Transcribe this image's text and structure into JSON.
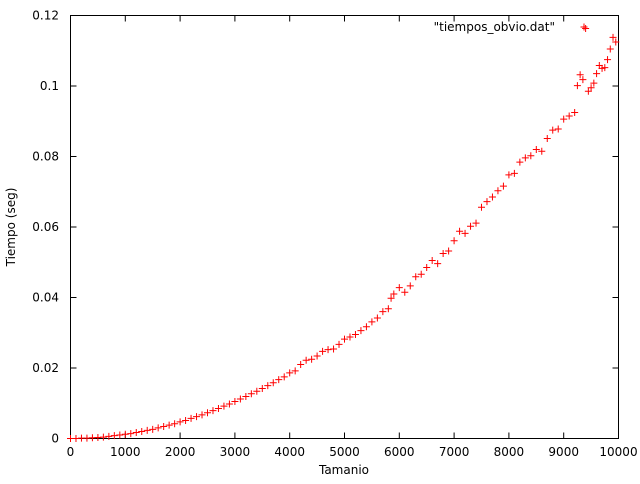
{
  "chart_data": {
    "type": "scatter",
    "title": "",
    "xlabel": "Tamanio",
    "ylabel": "Tiempo (seg)",
    "xlim": [
      0,
      10000
    ],
    "ylim": [
      0,
      0.12
    ],
    "x_ticks": [
      0,
      1000,
      2000,
      3000,
      4000,
      5000,
      6000,
      7000,
      8000,
      9000,
      10000
    ],
    "y_ticks": [
      0,
      0.02,
      0.04,
      0.06,
      0.08,
      0.1,
      0.12
    ],
    "x_tick_labels": [
      "0",
      "1000",
      "2000",
      "3000",
      "4000",
      "5000",
      "6000",
      "7000",
      "8000",
      "9000",
      "10000"
    ],
    "y_tick_labels": [
      "0",
      "0.02",
      "0.04",
      "0.06",
      "0.08",
      "0.1",
      "0.12"
    ],
    "grid": false,
    "legend_position": "top-right",
    "marker": "plus",
    "series": [
      {
        "name": "\"tiempos_obvio.dat\"",
        "color": "#ff0000",
        "points": [
          [
            0,
            0.0
          ],
          [
            100,
            0.0
          ],
          [
            200,
            0.0001
          ],
          [
            300,
            0.0001
          ],
          [
            400,
            0.0002
          ],
          [
            500,
            0.0003
          ],
          [
            600,
            0.0004
          ],
          [
            700,
            0.0006
          ],
          [
            800,
            0.0008
          ],
          [
            900,
            0.001
          ],
          [
            1000,
            0.0012
          ],
          [
            1100,
            0.0014
          ],
          [
            1200,
            0.0017
          ],
          [
            1300,
            0.002
          ],
          [
            1400,
            0.0023
          ],
          [
            1500,
            0.0026
          ],
          [
            1600,
            0.003
          ],
          [
            1700,
            0.0034
          ],
          [
            1800,
            0.0038
          ],
          [
            1900,
            0.0042
          ],
          [
            2000,
            0.0047
          ],
          [
            2100,
            0.0051
          ],
          [
            2200,
            0.0057
          ],
          [
            2300,
            0.0062
          ],
          [
            2400,
            0.0067
          ],
          [
            2500,
            0.0073
          ],
          [
            2600,
            0.0079
          ],
          [
            2700,
            0.0085
          ],
          [
            2800,
            0.0092
          ],
          [
            2900,
            0.0098
          ],
          [
            3000,
            0.0105
          ],
          [
            3100,
            0.0112
          ],
          [
            3200,
            0.0119
          ],
          [
            3300,
            0.0127
          ],
          [
            3400,
            0.0134
          ],
          [
            3500,
            0.0142
          ],
          [
            3600,
            0.015
          ],
          [
            3700,
            0.0158
          ],
          [
            3800,
            0.0167
          ],
          [
            3900,
            0.0175
          ],
          [
            4000,
            0.0186
          ],
          [
            4100,
            0.0192
          ],
          [
            4200,
            0.021
          ],
          [
            4300,
            0.0222
          ],
          [
            4400,
            0.0225
          ],
          [
            4500,
            0.0234
          ],
          [
            4600,
            0.0247
          ],
          [
            4700,
            0.0252
          ],
          [
            4800,
            0.0254
          ],
          [
            4900,
            0.0267
          ],
          [
            5000,
            0.0282
          ],
          [
            5100,
            0.0288
          ],
          [
            5200,
            0.0295
          ],
          [
            5300,
            0.0306
          ],
          [
            5400,
            0.0317
          ],
          [
            5500,
            0.0331
          ],
          [
            5600,
            0.0342
          ],
          [
            5700,
            0.036
          ],
          [
            5800,
            0.0368
          ],
          [
            5850,
            0.0398
          ],
          [
            5900,
            0.041
          ],
          [
            6000,
            0.0428
          ],
          [
            6100,
            0.0415
          ],
          [
            6200,
            0.0433
          ],
          [
            6300,
            0.0459
          ],
          [
            6400,
            0.0466
          ],
          [
            6500,
            0.0485
          ],
          [
            6600,
            0.0505
          ],
          [
            6700,
            0.0496
          ],
          [
            6800,
            0.0525
          ],
          [
            6900,
            0.0532
          ],
          [
            7000,
            0.0561
          ],
          [
            7100,
            0.0588
          ],
          [
            7200,
            0.0582
          ],
          [
            7300,
            0.0602
          ],
          [
            7400,
            0.0611
          ],
          [
            7500,
            0.0656
          ],
          [
            7600,
            0.0672
          ],
          [
            7700,
            0.0685
          ],
          [
            7800,
            0.0703
          ],
          [
            7900,
            0.0716
          ],
          [
            8000,
            0.0748
          ],
          [
            8100,
            0.0752
          ],
          [
            8200,
            0.0784
          ],
          [
            8300,
            0.0796
          ],
          [
            8400,
            0.0802
          ],
          [
            8500,
            0.082
          ],
          [
            8600,
            0.0815
          ],
          [
            8700,
            0.0851
          ],
          [
            8800,
            0.0875
          ],
          [
            8900,
            0.0878
          ],
          [
            9000,
            0.0906
          ],
          [
            9100,
            0.0915
          ],
          [
            9200,
            0.0925
          ],
          [
            9250,
            0.1001
          ],
          [
            9300,
            0.1032
          ],
          [
            9350,
            0.1018
          ],
          [
            9400,
            0.1163
          ],
          [
            9450,
            0.0985
          ],
          [
            9500,
            0.0995
          ],
          [
            9550,
            0.1008
          ],
          [
            9600,
            0.1035
          ],
          [
            9650,
            0.1058
          ],
          [
            9700,
            0.105
          ],
          [
            9750,
            0.1052
          ],
          [
            9800,
            0.1075
          ],
          [
            9850,
            0.1105
          ],
          [
            9900,
            0.1138
          ],
          [
            9950,
            0.1125
          ]
        ]
      }
    ]
  }
}
